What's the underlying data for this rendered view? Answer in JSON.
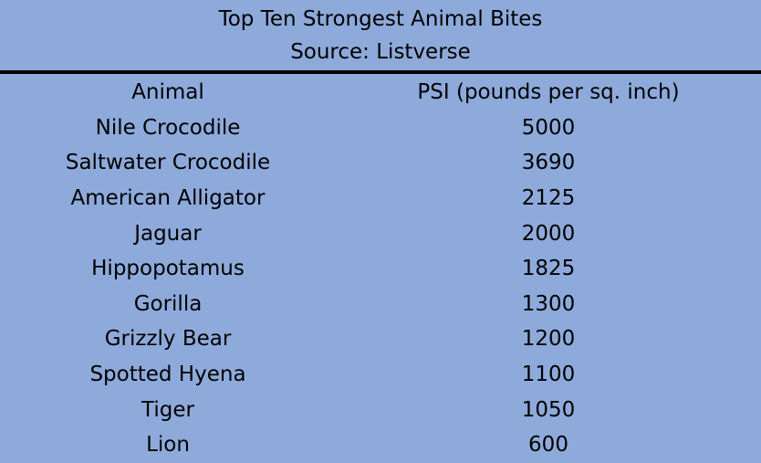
{
  "table": {
    "title": "Top Ten Strongest Animal Bites",
    "source": "Source: Listverse",
    "columns": [
      "Animal",
      "PSI (pounds per sq. inch)"
    ],
    "rows": [
      {
        "animal": "Nile Crocodile",
        "psi": "5000"
      },
      {
        "animal": "Saltwater Crocodile",
        "psi": "3690"
      },
      {
        "animal": "American Alligator",
        "psi": "2125"
      },
      {
        "animal": "Jaguar",
        "psi": "2000"
      },
      {
        "animal": "Hippopotamus",
        "psi": "1825"
      },
      {
        "animal": "Gorilla",
        "psi": "1300"
      },
      {
        "animal": "Grizzly Bear",
        "psi": "1200"
      },
      {
        "animal": "Spotted Hyena",
        "psi": "1100"
      },
      {
        "animal": "Tiger",
        "psi": "1050"
      },
      {
        "animal": "Lion",
        "psi": "600"
      }
    ]
  },
  "colors": {
    "background": "#8eaadb",
    "rule": "#000000",
    "text": "#000000"
  }
}
